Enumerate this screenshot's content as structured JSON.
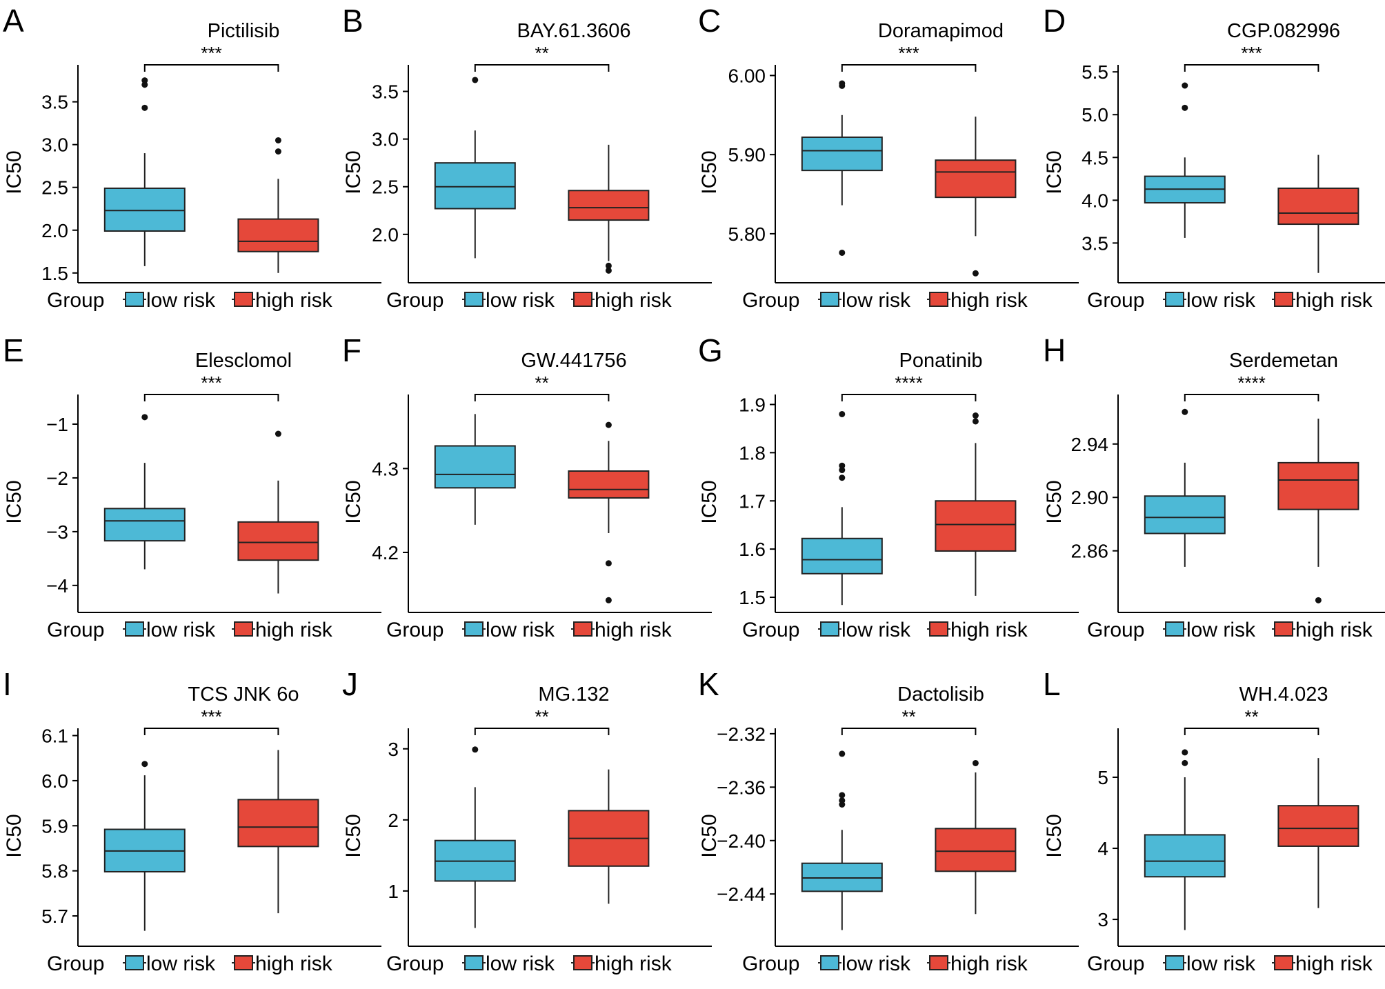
{
  "figure": {
    "legend": {
      "title": "Group",
      "entries": [
        {
          "label": "low risk",
          "color": "#4DB9D6"
        },
        {
          "label": "high risk",
          "color": "#E5483A"
        }
      ]
    },
    "ylabel": "IC50"
  },
  "chart_data": [
    {
      "panel": "A",
      "type": "box",
      "title": "Pictilisib",
      "ylabel": "IC50",
      "ylim": [
        1.45,
        3.9
      ],
      "yticks": [
        1.5,
        2.0,
        2.5,
        3.0,
        3.5
      ],
      "ytick_labels": [
        "1.5",
        "2.0",
        "2.5",
        "3.0",
        "3.5"
      ],
      "categories": [
        "low risk",
        "high risk"
      ],
      "significance": "***",
      "boxes": [
        {
          "group": "low risk",
          "q1": 1.99,
          "median": 2.23,
          "q3": 2.49,
          "whisker_low": 1.58,
          "whisker_high": 2.9,
          "outliers": [
            3.43,
            3.7,
            3.75
          ]
        },
        {
          "group": "high risk",
          "q1": 1.75,
          "median": 1.87,
          "q3": 2.13,
          "whisker_low": 1.5,
          "whisker_high": 2.6,
          "outliers": [
            2.92,
            3.05
          ]
        }
      ]
    },
    {
      "panel": "B",
      "type": "box",
      "title": "BAY.61.3606",
      "ylabel": "IC50",
      "ylim": [
        1.55,
        3.75
      ],
      "yticks": [
        2.0,
        2.5,
        3.0,
        3.5
      ],
      "ytick_labels": [
        "2.0",
        "2.5",
        "3.0",
        "3.5"
      ],
      "categories": [
        "low risk",
        "high risk"
      ],
      "significance": "**",
      "boxes": [
        {
          "group": "low risk",
          "q1": 2.27,
          "median": 2.5,
          "q3": 2.75,
          "whisker_low": 1.75,
          "whisker_high": 3.09,
          "outliers": [
            3.62
          ]
        },
        {
          "group": "high risk",
          "q1": 2.15,
          "median": 2.28,
          "q3": 2.46,
          "whisker_low": 1.72,
          "whisker_high": 2.94,
          "outliers": [
            1.62,
            1.67
          ]
        }
      ]
    },
    {
      "panel": "C",
      "type": "box",
      "title": "Doramapimod",
      "ylabel": "IC50",
      "ylim": [
        5.745,
        6.01
      ],
      "yticks": [
        5.8,
        5.9,
        6.0
      ],
      "ytick_labels": [
        "5.80",
        "5.90",
        "6.00"
      ],
      "categories": [
        "low risk",
        "high risk"
      ],
      "significance": "***",
      "boxes": [
        {
          "group": "low risk",
          "q1": 5.88,
          "median": 5.905,
          "q3": 5.922,
          "whisker_low": 5.836,
          "whisker_high": 5.95,
          "outliers": [
            5.776,
            5.987,
            5.99
          ]
        },
        {
          "group": "high risk",
          "q1": 5.846,
          "median": 5.878,
          "q3": 5.893,
          "whisker_low": 5.797,
          "whisker_high": 5.948,
          "outliers": [
            5.75
          ]
        }
      ]
    },
    {
      "panel": "D",
      "type": "box",
      "title": "CGP.082996",
      "ylabel": "IC50",
      "ylim": [
        3.1,
        5.55
      ],
      "yticks": [
        3.5,
        4.0,
        4.5,
        5.0,
        5.5
      ],
      "ytick_labels": [
        "3.5",
        "4.0",
        "4.5",
        "5.0",
        "5.5"
      ],
      "categories": [
        "low risk",
        "high risk"
      ],
      "significance": "***",
      "boxes": [
        {
          "group": "low risk",
          "q1": 3.97,
          "median": 4.13,
          "q3": 4.28,
          "whisker_low": 3.56,
          "whisker_high": 4.5,
          "outliers": [
            5.08,
            5.34
          ]
        },
        {
          "group": "high risk",
          "q1": 3.72,
          "median": 3.85,
          "q3": 4.14,
          "whisker_low": 3.15,
          "whisker_high": 4.53,
          "outliers": []
        }
      ]
    },
    {
      "panel": "E",
      "type": "box",
      "title": "Elesclomol",
      "ylabel": "IC50",
      "ylim": [
        -4.4,
        -0.5
      ],
      "yticks": [
        -4,
        -3,
        -2,
        -1
      ],
      "ytick_labels": [
        "−4",
        "−3",
        "−2",
        "−1"
      ],
      "categories": [
        "low risk",
        "high risk"
      ],
      "significance": "***",
      "boxes": [
        {
          "group": "low risk",
          "q1": -3.17,
          "median": -2.8,
          "q3": -2.57,
          "whisker_low": -3.7,
          "whisker_high": -1.72,
          "outliers": [
            -0.87
          ]
        },
        {
          "group": "high risk",
          "q1": -3.53,
          "median": -3.2,
          "q3": -2.82,
          "whisker_low": -4.15,
          "whisker_high": -2.05,
          "outliers": [
            -1.18
          ]
        }
      ]
    },
    {
      "panel": "F",
      "type": "box",
      "title": "GW.441756",
      "ylabel": "IC50",
      "ylim": [
        4.135,
        4.385
      ],
      "yticks": [
        4.2,
        4.3
      ],
      "ytick_labels": [
        "4.2",
        "4.3"
      ],
      "categories": [
        "low risk",
        "high risk"
      ],
      "significance": "**",
      "boxes": [
        {
          "group": "low risk",
          "q1": 4.277,
          "median": 4.293,
          "q3": 4.327,
          "whisker_low": 4.233,
          "whisker_high": 4.365,
          "outliers": []
        },
        {
          "group": "high risk",
          "q1": 4.265,
          "median": 4.275,
          "q3": 4.297,
          "whisker_low": 4.223,
          "whisker_high": 4.333,
          "outliers": [
            4.352,
            4.187,
            4.143
          ]
        }
      ]
    },
    {
      "panel": "G",
      "type": "box",
      "title": "Ponatinib",
      "ylabel": "IC50",
      "ylim": [
        1.48,
        1.915
      ],
      "yticks": [
        1.5,
        1.6,
        1.7,
        1.8,
        1.9
      ],
      "ytick_labels": [
        "1.5",
        "1.6",
        "1.7",
        "1.8",
        "1.9"
      ],
      "categories": [
        "low risk",
        "high risk"
      ],
      "significance": "****",
      "boxes": [
        {
          "group": "low risk",
          "q1": 1.549,
          "median": 1.578,
          "q3": 1.622,
          "whisker_low": 1.484,
          "whisker_high": 1.687,
          "outliers": [
            1.748,
            1.764,
            1.773,
            1.88
          ]
        },
        {
          "group": "high risk",
          "q1": 1.596,
          "median": 1.651,
          "q3": 1.7,
          "whisker_low": 1.503,
          "whisker_high": 1.82,
          "outliers": [
            1.865,
            1.877
          ]
        }
      ]
    },
    {
      "panel": "H",
      "type": "box",
      "title": "Serdemetan",
      "ylabel": "IC50",
      "ylim": [
        2.818,
        2.975
      ],
      "yticks": [
        2.86,
        2.9,
        2.94
      ],
      "ytick_labels": [
        "2.86",
        "2.90",
        "2.94"
      ],
      "categories": [
        "low risk",
        "high risk"
      ],
      "significance": "****",
      "boxes": [
        {
          "group": "low risk",
          "q1": 2.873,
          "median": 2.885,
          "q3": 2.901,
          "whisker_low": 2.848,
          "whisker_high": 2.926,
          "outliers": [
            2.964
          ]
        },
        {
          "group": "high risk",
          "q1": 2.891,
          "median": 2.913,
          "q3": 2.926,
          "whisker_low": 2.848,
          "whisker_high": 2.959,
          "outliers": [
            2.823
          ]
        }
      ]
    },
    {
      "panel": "I",
      "type": "box",
      "title": "TCS JNK 6o",
      "ylabel": "IC50",
      "ylim": [
        5.645,
        6.11
      ],
      "yticks": [
        5.7,
        5.8,
        5.9,
        6.0,
        6.1
      ],
      "ytick_labels": [
        "5.7",
        "5.8",
        "5.9",
        "6.0",
        "6.1"
      ],
      "categories": [
        "low risk",
        "high risk"
      ],
      "significance": "***",
      "boxes": [
        {
          "group": "low risk",
          "q1": 5.798,
          "median": 5.844,
          "q3": 5.892,
          "whisker_low": 5.667,
          "whisker_high": 6.012,
          "outliers": [
            6.037
          ]
        },
        {
          "group": "high risk",
          "q1": 5.854,
          "median": 5.897,
          "q3": 5.958,
          "whisker_low": 5.706,
          "whisker_high": 6.068,
          "outliers": []
        }
      ]
    },
    {
      "panel": "J",
      "type": "box",
      "title": "MG.132",
      "ylabel": "IC50",
      "ylim": [
        0.3,
        3.25
      ],
      "yticks": [
        1,
        2,
        3
      ],
      "ytick_labels": [
        "1",
        "2",
        "3"
      ],
      "categories": [
        "low risk",
        "high risk"
      ],
      "significance": "**",
      "boxes": [
        {
          "group": "low risk",
          "q1": 1.14,
          "median": 1.42,
          "q3": 1.71,
          "whisker_low": 0.48,
          "whisker_high": 2.46,
          "outliers": [
            2.99
          ]
        },
        {
          "group": "high risk",
          "q1": 1.35,
          "median": 1.74,
          "q3": 2.13,
          "whisker_low": 0.82,
          "whisker_high": 2.71,
          "outliers": []
        }
      ]
    },
    {
      "panel": "K",
      "type": "box",
      "title": "Dactolisib",
      "ylabel": "IC50",
      "ylim": [
        -2.475,
        -2.318
      ],
      "yticks": [
        -2.44,
        -2.4,
        -2.36,
        -2.32
      ],
      "ytick_labels": [
        "−2.44",
        "−2.40",
        "−2.36",
        "−2.32"
      ],
      "categories": [
        "low risk",
        "high risk"
      ],
      "significance": "**",
      "boxes": [
        {
          "group": "low risk",
          "q1": -2.438,
          "median": -2.428,
          "q3": -2.417,
          "whisker_low": -2.467,
          "whisker_high": -2.392,
          "outliers": [
            -2.373,
            -2.37,
            -2.366,
            -2.335
          ]
        },
        {
          "group": "high risk",
          "q1": -2.423,
          "median": -2.408,
          "q3": -2.391,
          "whisker_low": -2.455,
          "whisker_high": -2.349,
          "outliers": [
            -2.342
          ]
        }
      ]
    },
    {
      "panel": "L",
      "type": "box",
      "title": "WH.4.023",
      "ylabel": "IC50",
      "ylim": [
        2.7,
        5.65
      ],
      "yticks": [
        3,
        4,
        5
      ],
      "ytick_labels": [
        "3",
        "4",
        "5"
      ],
      "categories": [
        "low risk",
        "high risk"
      ],
      "significance": "**",
      "boxes": [
        {
          "group": "low risk",
          "q1": 3.6,
          "median": 3.82,
          "q3": 4.19,
          "whisker_low": 2.85,
          "whisker_high": 5.0,
          "outliers": [
            5.2,
            5.35
          ]
        },
        {
          "group": "high risk",
          "q1": 4.03,
          "median": 4.28,
          "q3": 4.6,
          "whisker_low": 3.16,
          "whisker_high": 5.27,
          "outliers": []
        }
      ]
    }
  ]
}
